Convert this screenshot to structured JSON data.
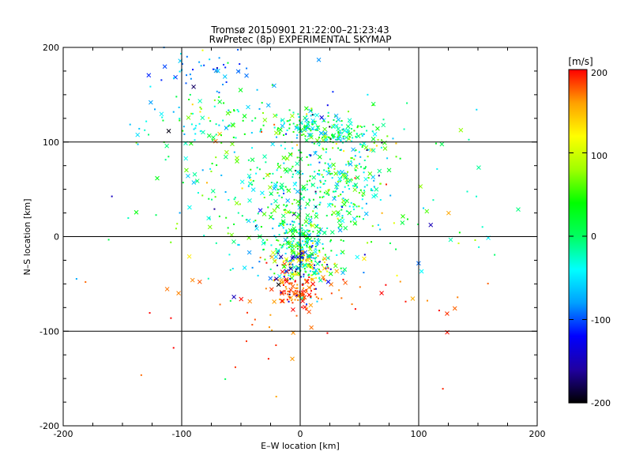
{
  "chart_data": {
    "type": "scatter",
    "title": "Tromsø 20150901 21:22:00–21:23:43",
    "subtitle": "RwPretec (8p) EXPERIMENTAL SKYMAP",
    "xlabel": "E–W location [km]",
    "ylabel": "N–S location [km]",
    "xlim": [
      -200,
      200
    ],
    "ylim": [
      -200,
      200
    ],
    "xticks": [
      "-200",
      "-100",
      "0",
      "100",
      "200"
    ],
    "yticks": [
      "-200",
      "-100",
      "0",
      "100",
      "200"
    ],
    "grid": true,
    "markers": [
      "x",
      "dot"
    ],
    "colorbar": {
      "label": "[m/s]",
      "range": [
        -200,
        200
      ],
      "ticks": [
        "200",
        "100",
        "0",
        "-100",
        "-200"
      ],
      "colormap": [
        "#000000",
        "#2000a0",
        "#0000ff",
        "#00a0ff",
        "#00ffff",
        "#00ff60",
        "#00ff00",
        "#a0ff00",
        "#ffff00",
        "#ffa000",
        "#ff0000"
      ]
    },
    "clusters": [
      {
        "cx": 0,
        "cy": -30,
        "sx": 14,
        "sy": 14,
        "n": 260
      },
      {
        "cx": 0,
        "cy": 0,
        "sx": 10,
        "sy": 14,
        "n": 120
      },
      {
        "cx": 0,
        "cy": -62,
        "sx": 8,
        "sy": 6,
        "n": 70
      },
      {
        "cx": 35,
        "cy": 107,
        "sx": 15,
        "sy": 8,
        "n": 120
      },
      {
        "cx": 0,
        "cy": 120,
        "sx": 12,
        "sy": 7,
        "n": 70
      },
      {
        "cx": 30,
        "cy": 55,
        "sx": 25,
        "sy": 20,
        "n": 170
      },
      {
        "cx": -10,
        "cy": 60,
        "sx": 40,
        "sy": 40,
        "n": 170
      },
      {
        "cx": -85,
        "cy": 120,
        "sx": 25,
        "sy": 20,
        "n": 80
      },
      {
        "cx": -80,
        "cy": 175,
        "sx": 20,
        "sy": 15,
        "n": 45
      },
      {
        "cx": 0,
        "cy": 30,
        "sx": 60,
        "sy": 60,
        "n": 230
      },
      {
        "cx": 0,
        "cy": 0,
        "sx": 110,
        "sy": 110,
        "n": 110
      }
    ]
  }
}
